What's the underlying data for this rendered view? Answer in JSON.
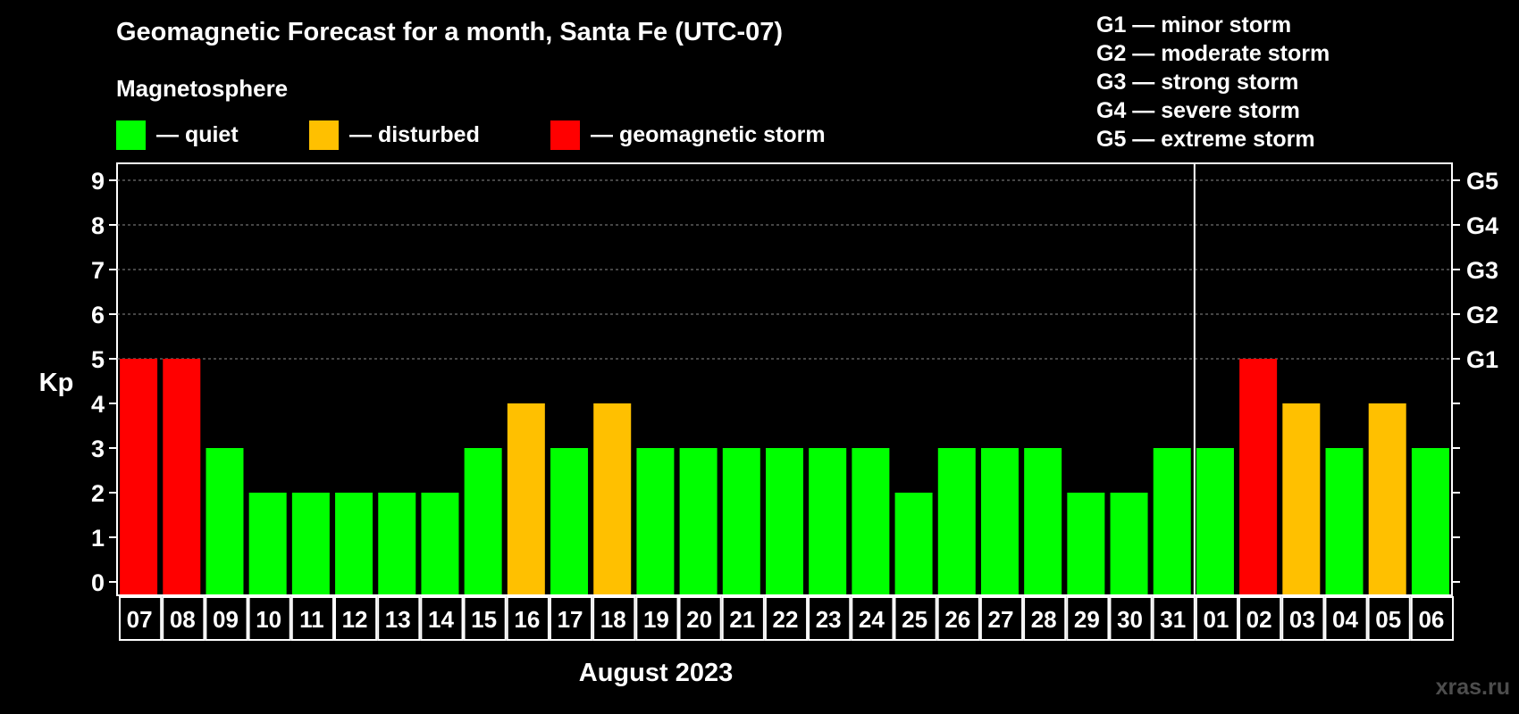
{
  "header": {
    "title": "Geomagnetic Forecast for a month, Santa Fe (UTC-07)",
    "section_label": "Magnetosphere"
  },
  "legend": {
    "items": [
      {
        "label": "— quiet",
        "color": "#00ff00"
      },
      {
        "label": "— disturbed",
        "color": "#ffc000"
      },
      {
        "label": "— geomagnetic storm",
        "color": "#ff0000"
      }
    ]
  },
  "storm_scale": [
    "G1 — minor storm",
    "G2 — moderate storm",
    "G3 — strong storm",
    "G4 — severe storm",
    "G5 — extreme storm"
  ],
  "chart_data": {
    "type": "bar",
    "ylabel": "Kp",
    "xlabel": "August 2023",
    "ylim": [
      0,
      9
    ],
    "yticks": [
      "0",
      "1",
      "2",
      "3",
      "4",
      "5",
      "6",
      "7",
      "8",
      "9"
    ],
    "right_axis_labels": [
      {
        "kp": 5,
        "label": "G1"
      },
      {
        "kp": 6,
        "label": "G2"
      },
      {
        "kp": 7,
        "label": "G3"
      },
      {
        "kp": 8,
        "label": "G4"
      },
      {
        "kp": 9,
        "label": "G5"
      }
    ],
    "month_separator_after": "31",
    "categories": [
      "07",
      "08",
      "09",
      "10",
      "11",
      "12",
      "13",
      "14",
      "15",
      "16",
      "17",
      "18",
      "19",
      "20",
      "21",
      "22",
      "23",
      "24",
      "25",
      "26",
      "27",
      "28",
      "29",
      "30",
      "31",
      "01",
      "02",
      "03",
      "04",
      "05",
      "06"
    ],
    "values": [
      5,
      5,
      3,
      2,
      2,
      2,
      2,
      2,
      3,
      4,
      3,
      4,
      3,
      3,
      3,
      3,
      3,
      3,
      2,
      3,
      3,
      3,
      2,
      2,
      3,
      3,
      5,
      4,
      3,
      4,
      3
    ],
    "colors": {
      "quiet": "#00ff00",
      "disturbed": "#ffc000",
      "storm": "#ff0000"
    }
  },
  "watermark": "xras.ru"
}
